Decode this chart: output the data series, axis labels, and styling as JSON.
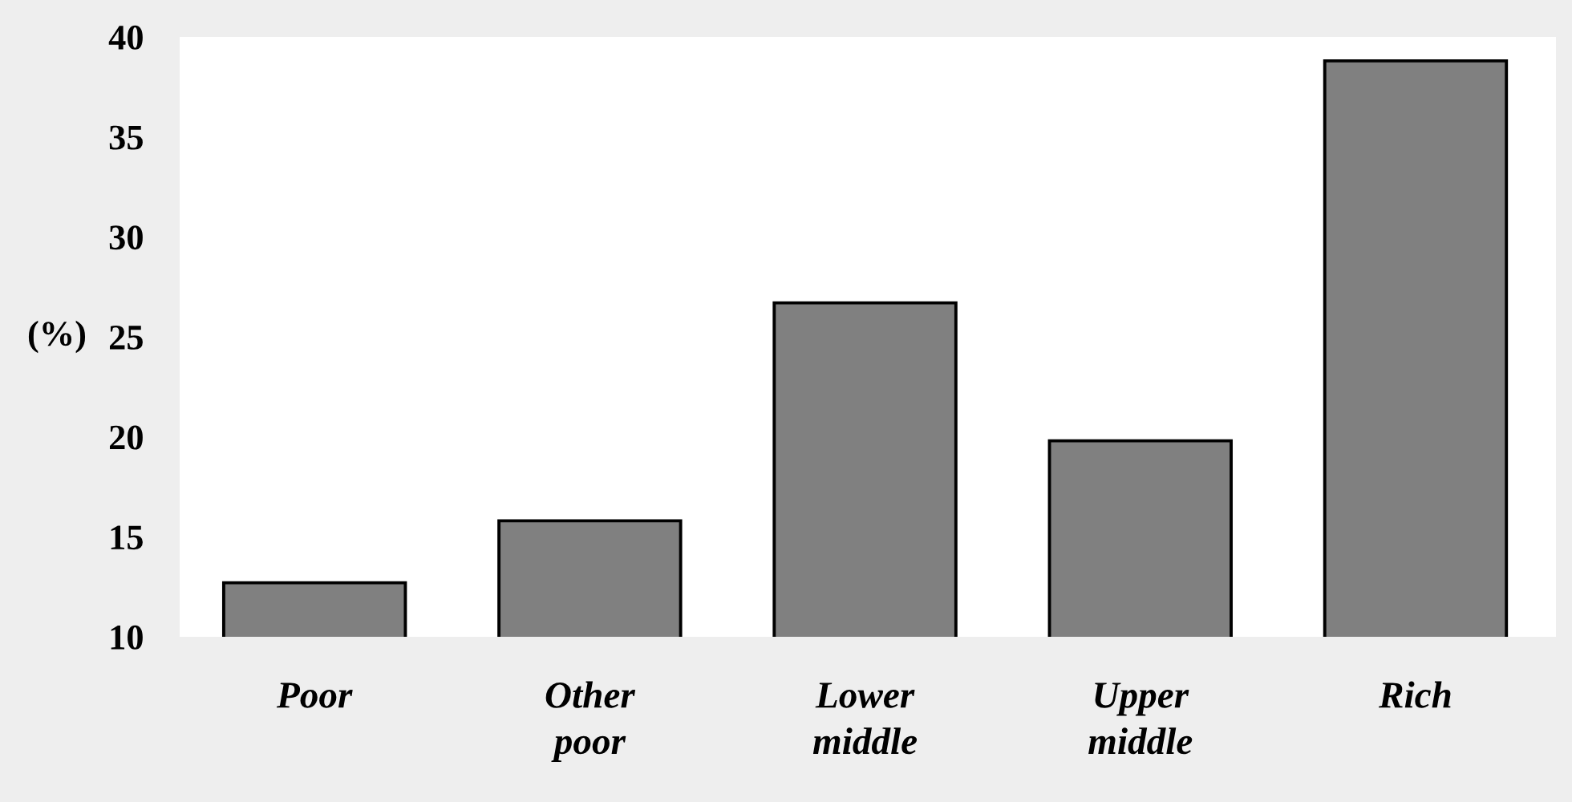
{
  "chart_data": {
    "type": "bar",
    "ylabel": "(%)",
    "categories": [
      "Poor",
      "Other\npoor",
      "Lower\nmiddle",
      "Upper\nmiddle",
      "Rich"
    ],
    "values": [
      12.7,
      15.8,
      26.7,
      19.8,
      38.8
    ],
    "color": "#808080",
    "ylim": [
      10,
      40
    ],
    "yticks": [
      10,
      15,
      20,
      25,
      30,
      35,
      40
    ]
  }
}
